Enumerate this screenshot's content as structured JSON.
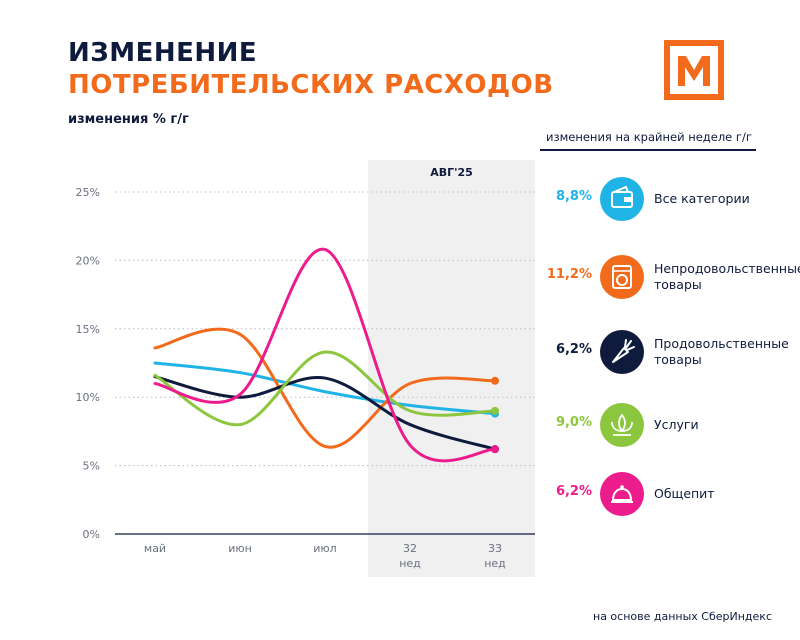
{
  "header": {
    "title_line1": "ИЗМЕНЕНИЕ",
    "title_line2": "ПОТРЕБИТЕЛЬСКИХ РАСХОДОВ",
    "subtitle": "изменения % г/г"
  },
  "logo": {
    "icon": "m-logo-icon",
    "color": "#f26a1b",
    "letter": "М"
  },
  "legend": {
    "heading": "изменения на крайней неделе г/г",
    "items": [
      {
        "value": "8,8%",
        "label": "Все категории",
        "color": "#1fb3e6",
        "icon": "wallet-icon"
      },
      {
        "value": "11,2%",
        "label": "Непродовольственные товары",
        "color": "#f26a1b",
        "icon": "washing-machine-icon"
      },
      {
        "value": "6,2%",
        "label": "Продовольственные товары",
        "color": "#0f1b3d",
        "icon": "carrot-icon"
      },
      {
        "value": "9,0%",
        "label": "Услуги",
        "color": "#8cc63f",
        "icon": "lotus-icon"
      },
      {
        "value": "6,2%",
        "label": "Общепит",
        "color": "#ec1c8c",
        "icon": "cloche-icon"
      }
    ]
  },
  "source": "на основе данных СберИндекс",
  "chart_data": {
    "type": "line",
    "categories": [
      "май",
      "июн",
      "июл",
      "32 нед",
      "33 нед"
    ],
    "highlight": {
      "label": "АВГ'25",
      "from_index": 3,
      "to_index": 4
    },
    "ylabel_suffix": "%",
    "ylim": [
      0,
      25
    ],
    "yticks": [
      "0%",
      "5%",
      "10%",
      "15%",
      "20%",
      "25%"
    ],
    "grid": "horizontal-dotted",
    "series": [
      {
        "name": "Все категории",
        "color": "#1fb3e6",
        "values": [
          12.5,
          11.8,
          10.4,
          9.4,
          8.8
        ]
      },
      {
        "name": "Непродовольственные товары",
        "color": "#f26a1b",
        "values": [
          13.6,
          14.6,
          6.4,
          11.0,
          11.2
        ]
      },
      {
        "name": "Продовольственные товары",
        "color": "#0f1b3d",
        "values": [
          11.5,
          10.0,
          11.4,
          8.0,
          6.2
        ]
      },
      {
        "name": "Услуги",
        "color": "#8cc63f",
        "values": [
          11.6,
          8.0,
          13.3,
          9.0,
          9.0
        ]
      },
      {
        "name": "Общепит",
        "color": "#ec1c8c",
        "values": [
          11.0,
          10.2,
          20.8,
          6.5,
          6.2
        ]
      }
    ]
  }
}
